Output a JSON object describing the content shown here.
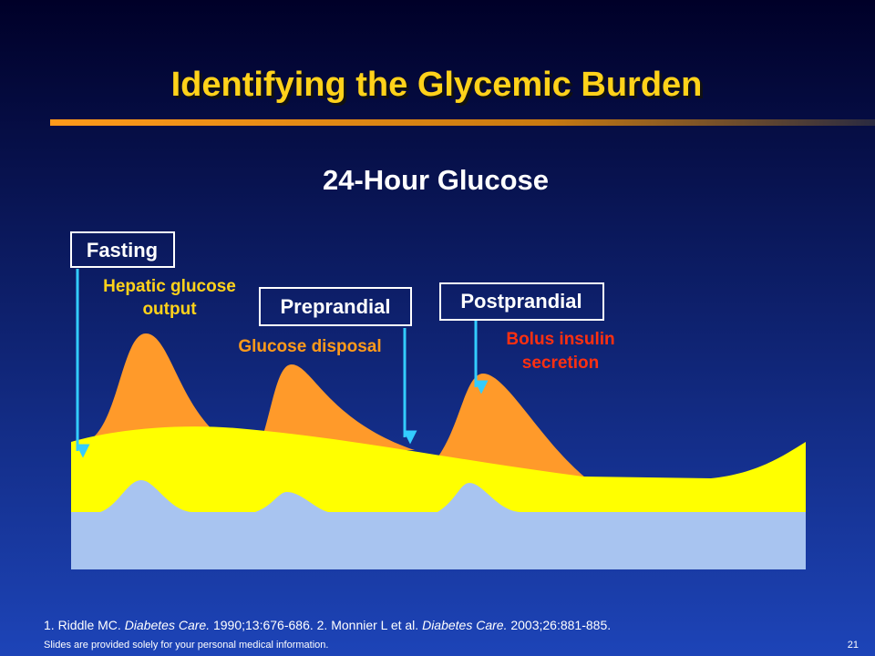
{
  "header": {
    "title": "Identifying the Glycemic Burden",
    "subtitle": "24-Hour Glucose"
  },
  "labels": {
    "fasting": "Fasting",
    "hepatic": [
      "Hepatic glucose",
      "output"
    ],
    "preprandial": "Preprandial",
    "disposal": "Glucose disposal",
    "postprandial": "Postprandial",
    "bolus": [
      "Bolus insulin",
      "secretion"
    ]
  },
  "footer": {
    "citation": [
      "1. Riddle MC.",
      "Diabetes Care.",
      "1990;13:676-686. 2. Monnier L et al.",
      "Diabetes Care.",
      "2003;26:881-885."
    ],
    "disclaimer": "Slides are provided solely for your personal medical information.",
    "page": "21"
  }
}
